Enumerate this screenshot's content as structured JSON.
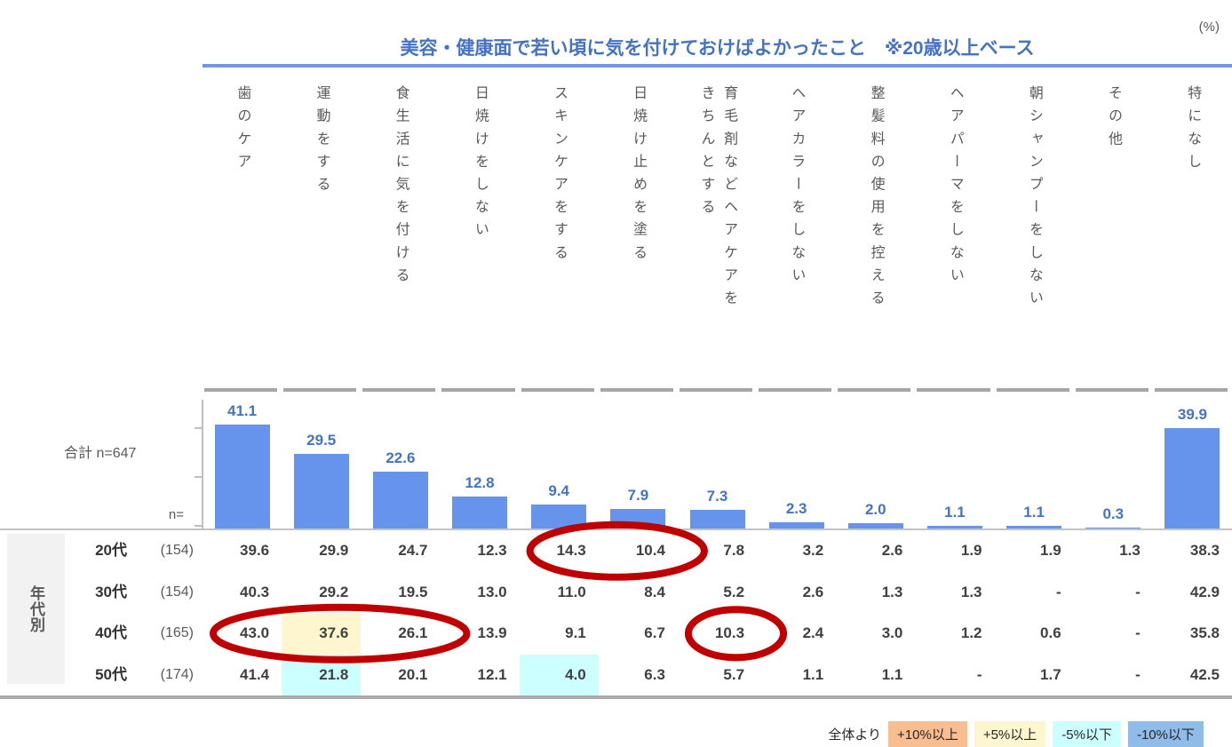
{
  "unit_label": "(%)",
  "title": "美容・健康面で若い頃に気を付けておけばよかったこと　※20歳以上ベース",
  "column_headers": [
    "歯のケア",
    "運動をする",
    "食生活に気を付ける",
    "日焼けをしない",
    "スキンケアをする",
    "日焼け止めを塗る",
    "育毛剤などヘアケアを\nきちんとする",
    "ヘアカラーをしない",
    "整髪料の使用を控える",
    "ヘアパーマをしない",
    "朝シャンプーをしない",
    "その他",
    "特になし"
  ],
  "total_row": {
    "label": "合計 n=647",
    "n_label": "n="
  },
  "group_label": "年代別",
  "chart_data": {
    "type": "bar",
    "title": "美容・健康面で若い頃に気を付けておけばよかったこと ※20歳以上ベース",
    "unit": "%",
    "ylim": [
      0,
      45
    ],
    "grid": false,
    "legend_position": "none",
    "categories": [
      "歯のケア",
      "運動をする",
      "食生活に気を付ける",
      "日焼けをしない",
      "スキンケアをする",
      "日焼け止めを塗る",
      "育毛剤などヘアケアをきちんとする",
      "ヘアカラーをしない",
      "整髪料の使用を控える",
      "ヘアパーマをしない",
      "朝シャンプーをしない",
      "その他",
      "特になし"
    ],
    "total": {
      "name": "合計",
      "n": 647,
      "values": [
        41.1,
        29.5,
        22.6,
        12.8,
        9.4,
        7.9,
        7.3,
        2.3,
        2.0,
        1.1,
        1.1,
        0.3,
        39.9
      ]
    },
    "series": [
      {
        "name": "20代",
        "n": 154,
        "values": [
          39.6,
          29.9,
          24.7,
          12.3,
          14.3,
          10.4,
          7.8,
          3.2,
          2.6,
          1.9,
          1.9,
          1.3,
          38.3
        ]
      },
      {
        "name": "30代",
        "n": 154,
        "values": [
          40.3,
          29.2,
          19.5,
          13.0,
          11.0,
          8.4,
          5.2,
          2.6,
          1.3,
          1.3,
          null,
          null,
          42.9
        ]
      },
      {
        "name": "40代",
        "n": 165,
        "values": [
          43.0,
          37.6,
          26.1,
          13.9,
          9.1,
          6.7,
          10.3,
          2.4,
          3.0,
          1.2,
          0.6,
          null,
          35.8
        ]
      },
      {
        "name": "50代",
        "n": 174,
        "values": [
          41.4,
          21.8,
          20.1,
          12.1,
          4.0,
          6.3,
          5.7,
          1.1,
          1.1,
          null,
          1.7,
          null,
          42.5
        ]
      }
    ]
  },
  "table": {
    "rows": [
      {
        "label": "20代",
        "n_display": "(154)",
        "cells": [
          "39.6",
          "29.9",
          "24.7",
          "12.3",
          "14.3",
          "10.4",
          "7.8",
          "3.2",
          "2.6",
          "1.9",
          "1.9",
          "1.3",
          "38.3"
        ]
      },
      {
        "label": "30代",
        "n_display": "(154)",
        "cells": [
          "40.3",
          "29.2",
          "19.5",
          "13.0",
          "11.0",
          "8.4",
          "5.2",
          "2.6",
          "1.3",
          "1.3",
          "-",
          "-",
          "42.9"
        ]
      },
      {
        "label": "40代",
        "n_display": "(165)",
        "cells": [
          "43.0",
          "37.6",
          "26.1",
          "13.9",
          "9.1",
          "6.7",
          "10.3",
          "2.4",
          "3.0",
          "1.2",
          "0.6",
          "-",
          "35.8"
        ]
      },
      {
        "label": "50代",
        "n_display": "(174)",
        "cells": [
          "41.4",
          "21.8",
          "20.1",
          "12.1",
          "4.0",
          "6.3",
          "5.7",
          "1.1",
          "1.1",
          "-",
          "1.7",
          "-",
          "42.5"
        ]
      }
    ],
    "highlights": [
      {
        "row": 2,
        "col": 1,
        "level": "+5%以上"
      },
      {
        "row": 3,
        "col": 1,
        "level": "-5%以下"
      },
      {
        "row": 3,
        "col": 4,
        "level": "-5%以下"
      }
    ],
    "circles": [
      {
        "row": 0,
        "col_start": 4,
        "col_end": 5
      },
      {
        "row": 2,
        "col_start": 0,
        "col_end": 2
      },
      {
        "row": 2,
        "col_start": 6,
        "col_end": 6
      }
    ]
  },
  "legend": {
    "prefix": "全体より",
    "items": [
      {
        "label": "+10%以上",
        "color": "#F9BE8F"
      },
      {
        "label": "+5%以上",
        "color": "#FDF6CE"
      },
      {
        "label": "-5%以下",
        "color": "#CCFFFF"
      },
      {
        "label": "-10%以下",
        "color": "#8FBCE8"
      }
    ]
  },
  "colors": {
    "bar": "#6694EC",
    "value_label": "#4472C4",
    "title": "#4472C4",
    "underline": "#7396E3",
    "circle": "#C00000",
    "axis": "#BFBFBF",
    "tick_dash": "#A6A6A6"
  }
}
